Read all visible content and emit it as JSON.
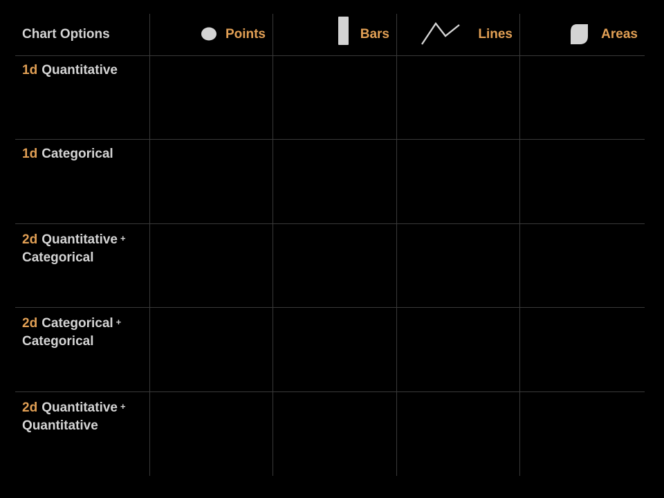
{
  "colors": {
    "background": "#000000",
    "accent": "#e2a055",
    "text": "#d4d4d4",
    "icon": "#d4d4d4",
    "grid": "#3a3a3a"
  },
  "header": {
    "corner_label": "Chart Options",
    "columns": [
      {
        "label": "Points",
        "icon": "circle-icon"
      },
      {
        "label": "Bars",
        "icon": "bar-icon"
      },
      {
        "label": "Lines",
        "icon": "line-zigzag-icon"
      },
      {
        "label": "Areas",
        "icon": "leaf-area-icon"
      }
    ]
  },
  "rows": [
    {
      "dim": "1d",
      "text": "Quantitative",
      "plus": "",
      "text2": ""
    },
    {
      "dim": "1d",
      "text": "Categorical",
      "plus": "",
      "text2": ""
    },
    {
      "dim": "2d",
      "text": "Quantitative",
      "plus": "+",
      "text2": "Categorical"
    },
    {
      "dim": "2d",
      "text": "Categorical",
      "plus": "+",
      "text2": "Categorical"
    },
    {
      "dim": "2d",
      "text": "Quantitative",
      "plus": "+",
      "text2": "Quantitative"
    }
  ]
}
